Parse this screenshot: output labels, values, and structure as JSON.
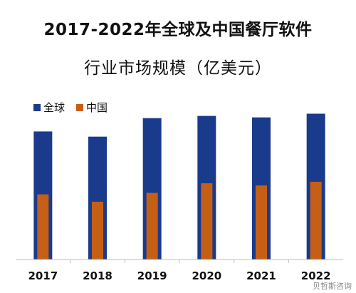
{
  "title_line1": "2017-2022年全球及中国餐厅软件",
  "title_line2": "行业市场规模（亿美元）",
  "watermark": "贝哲斯咨询",
  "chart_data": {
    "type": "bar",
    "categories": [
      "2017",
      "2018",
      "2019",
      "2020",
      "2021",
      "2022"
    ],
    "series": [
      {
        "name": "全球",
        "color": "#1a3b8c",
        "values": [
          173,
          166,
          191,
          194,
          192,
          197
        ]
      },
      {
        "name": "中国",
        "color": "#c65f16",
        "values": [
          88,
          78,
          90,
          103,
          100,
          105
        ]
      }
    ],
    "title": "2017-2022年全球及中国餐厅软件行业市场规模（亿美元）",
    "xlabel": "",
    "ylabel": "",
    "ylim": [
      0,
      210
    ],
    "grid": false,
    "legend": "top-left",
    "overlap": true
  }
}
